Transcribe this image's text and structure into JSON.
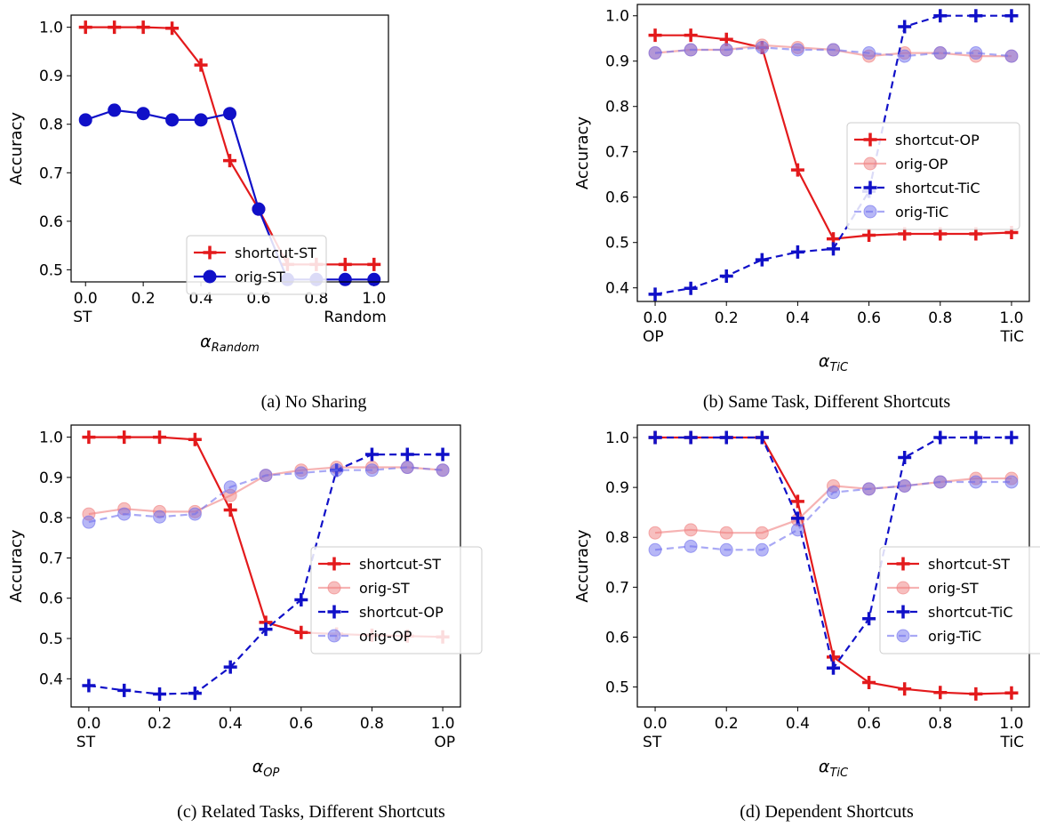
{
  "chart_data": [
    {
      "type": "line",
      "caption": "(a) No Sharing",
      "ylabel": "Accuracy",
      "xlabel_symbol": "α",
      "xlabel_sub": "Random",
      "x": [
        0,
        0.1,
        0.2,
        0.3,
        0.4,
        0.5,
        0.6,
        0.7,
        0.8,
        0.9,
        1.0
      ],
      "xlim": [
        -0.05,
        1.05
      ],
      "ylim": [
        0.475,
        1.025
      ],
      "xticks": [
        0,
        0.2,
        0.4,
        0.6,
        0.8,
        1.0
      ],
      "xtick_labels": [
        "0.0",
        "0.2",
        "0.4",
        "0.6",
        "0.8",
        "1.0"
      ],
      "yticks": [
        0.5,
        0.6,
        0.7,
        0.8,
        0.9,
        1.0
      ],
      "ytick_labels": [
        "0.5",
        "0.6",
        "0.7",
        "0.8",
        "0.9",
        "1.0"
      ],
      "end_labels": [
        "ST",
        "Random"
      ],
      "legend_position": "center-right",
      "series": [
        {
          "name": "shortcut-ST",
          "color": "#e31a1c",
          "marker": "plus",
          "dash": "solid",
          "faded": false,
          "values": [
            1.0,
            1.0,
            1.0,
            0.998,
            0.922,
            0.725,
            0.625,
            0.511,
            0.511,
            0.511,
            0.511
          ]
        },
        {
          "name": "orig-ST",
          "color": "#1010c8",
          "marker": "circle",
          "dash": "solid",
          "faded": false,
          "values": [
            0.809,
            0.829,
            0.822,
            0.809,
            0.809,
            0.822,
            0.625,
            0.48,
            0.48,
            0.48,
            0.48
          ]
        }
      ]
    },
    {
      "type": "line",
      "caption": "(b) Same Task, Different Shortcuts",
      "ylabel": "Accuracy",
      "xlabel_symbol": "α",
      "xlabel_sub": "TiC",
      "x": [
        0,
        0.1,
        0.2,
        0.3,
        0.4,
        0.5,
        0.6,
        0.7,
        0.8,
        0.9,
        1.0
      ],
      "xlim": [
        -0.05,
        1.05
      ],
      "ylim": [
        0.37,
        1.025
      ],
      "xticks": [
        0,
        0.2,
        0.4,
        0.6,
        0.8,
        1.0
      ],
      "xtick_labels": [
        "0.0",
        "0.2",
        "0.4",
        "0.6",
        "0.8",
        "1.0"
      ],
      "yticks": [
        0.4,
        0.5,
        0.6,
        0.7,
        0.8,
        0.9,
        1.0
      ],
      "ytick_labels": [
        "0.4",
        "0.5",
        "0.6",
        "0.7",
        "0.8",
        "0.9",
        "1.0"
      ],
      "end_labels": [
        "OP",
        "TiC"
      ],
      "legend_position": "center-right",
      "series": [
        {
          "name": "shortcut-OP",
          "color": "#e31a1c",
          "marker": "plus",
          "dash": "solid",
          "faded": false,
          "values": [
            0.957,
            0.957,
            0.948,
            0.93,
            0.66,
            0.508,
            0.516,
            0.519,
            0.519,
            0.519,
            0.522
          ]
        },
        {
          "name": "orig-OP",
          "color": "#f08080",
          "marker": "circle",
          "dash": "solid",
          "faded": true,
          "values": [
            0.918,
            0.925,
            0.925,
            0.935,
            0.93,
            0.925,
            0.911,
            0.918,
            0.918,
            0.911,
            0.911
          ]
        },
        {
          "name": "shortcut-TiC",
          "color": "#1010c8",
          "marker": "plus",
          "dash": "dashed",
          "faded": false,
          "values": [
            0.386,
            0.399,
            0.426,
            0.462,
            0.479,
            0.486,
            0.613,
            0.976,
            1.0,
            1.0,
            1.0
          ]
        },
        {
          "name": "orig-TiC",
          "color": "#7070ee",
          "marker": "circle",
          "dash": "dashed",
          "faded": true,
          "values": [
            0.918,
            0.925,
            0.925,
            0.93,
            0.925,
            0.925,
            0.918,
            0.911,
            0.918,
            0.918,
            0.911
          ]
        }
      ]
    },
    {
      "type": "line",
      "caption": "(c) Related Tasks, Different Shortcuts",
      "ylabel": "Accuracy",
      "xlabel_symbol": "α",
      "xlabel_sub": "OP",
      "x": [
        0,
        0.1,
        0.2,
        0.3,
        0.4,
        0.5,
        0.6,
        0.7,
        0.8,
        0.9,
        1.0
      ],
      "xlim": [
        -0.05,
        1.05
      ],
      "ylim": [
        0.33,
        1.03
      ],
      "xticks": [
        0,
        0.2,
        0.4,
        0.6,
        0.8,
        1.0
      ],
      "xtick_labels": [
        "0.0",
        "0.2",
        "0.4",
        "0.6",
        "0.8",
        "1.0"
      ],
      "yticks": [
        0.4,
        0.5,
        0.6,
        0.7,
        0.8,
        0.9,
        1.0
      ],
      "ytick_labels": [
        "0.4",
        "0.5",
        "0.6",
        "0.7",
        "0.8",
        "0.9",
        "1.0"
      ],
      "end_labels": [
        "ST",
        "OP"
      ],
      "legend_position": "center-right",
      "series": [
        {
          "name": "shortcut-ST",
          "color": "#e31a1c",
          "marker": "plus",
          "dash": "solid",
          "faded": false,
          "values": [
            1.0,
            1.0,
            1.0,
            0.994,
            0.819,
            0.54,
            0.515,
            0.511,
            0.508,
            0.506,
            0.504
          ]
        },
        {
          "name": "orig-ST",
          "color": "#f08080",
          "marker": "circle",
          "dash": "solid",
          "faded": true,
          "values": [
            0.809,
            0.822,
            0.815,
            0.815,
            0.855,
            0.905,
            0.918,
            0.925,
            0.925,
            0.925,
            0.918
          ]
        },
        {
          "name": "shortcut-OP",
          "color": "#1010c8",
          "marker": "plus",
          "dash": "dashed",
          "faded": false,
          "values": [
            0.383,
            0.371,
            0.362,
            0.364,
            0.429,
            0.523,
            0.596,
            0.918,
            0.957,
            0.957,
            0.957
          ]
        },
        {
          "name": "orig-OP",
          "color": "#7070ee",
          "marker": "circle",
          "dash": "dashed",
          "faded": true,
          "values": [
            0.789,
            0.809,
            0.802,
            0.809,
            0.876,
            0.905,
            0.911,
            0.918,
            0.918,
            0.925,
            0.918
          ]
        }
      ]
    },
    {
      "type": "line",
      "caption": "(d) Dependent Shortcuts",
      "ylabel": "Accuracy",
      "xlabel_symbol": "α",
      "xlabel_sub": "TiC",
      "x": [
        0,
        0.1,
        0.2,
        0.3,
        0.4,
        0.5,
        0.6,
        0.7,
        0.8,
        0.9,
        1.0
      ],
      "xlim": [
        -0.05,
        1.05
      ],
      "ylim": [
        0.46,
        1.025
      ],
      "xticks": [
        0,
        0.2,
        0.4,
        0.6,
        0.8,
        1.0
      ],
      "xtick_labels": [
        "0.0",
        "0.2",
        "0.4",
        "0.6",
        "0.8",
        "1.0"
      ],
      "yticks": [
        0.5,
        0.6,
        0.7,
        0.8,
        0.9,
        1.0
      ],
      "ytick_labels": [
        "0.5",
        "0.6",
        "0.7",
        "0.8",
        "0.9",
        "1.0"
      ],
      "end_labels": [
        "ST",
        "TiC"
      ],
      "legend_position": "center-right",
      "series": [
        {
          "name": "shortcut-ST",
          "color": "#e31a1c",
          "marker": "plus",
          "dash": "solid",
          "faded": false,
          "values": [
            1.0,
            1.0,
            1.0,
            1.0,
            0.872,
            0.56,
            0.509,
            0.496,
            0.489,
            0.486,
            0.488
          ]
        },
        {
          "name": "orig-ST",
          "color": "#f08080",
          "marker": "circle",
          "dash": "solid",
          "faded": true,
          "values": [
            0.809,
            0.815,
            0.809,
            0.809,
            0.835,
            0.903,
            0.897,
            0.903,
            0.911,
            0.918,
            0.918
          ]
        },
        {
          "name": "shortcut-TiC",
          "color": "#1010c8",
          "marker": "plus",
          "dash": "dashed",
          "faded": false,
          "values": [
            1.0,
            1.0,
            1.0,
            1.0,
            0.838,
            0.538,
            0.637,
            0.96,
            1.0,
            1.0,
            1.0
          ]
        },
        {
          "name": "orig-TiC",
          "color": "#7070ee",
          "marker": "circle",
          "dash": "dashed",
          "faded": true,
          "values": [
            0.775,
            0.782,
            0.775,
            0.775,
            0.815,
            0.89,
            0.897,
            0.903,
            0.911,
            0.911,
            0.911
          ]
        }
      ]
    }
  ]
}
